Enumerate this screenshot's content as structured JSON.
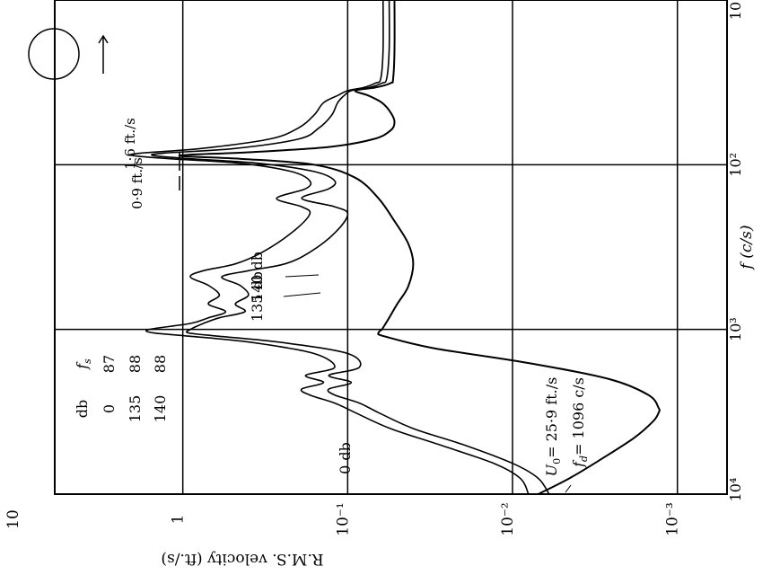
{
  "chart_data": {
    "type": "line",
    "orientation": "rotated-90-ccw",
    "x_scale": "log",
    "y_scale": "log",
    "xlabel": "f (c/s)",
    "ylabel": "R.M.S. velocity (ft./s)",
    "xlim": [
      10,
      10000
    ],
    "ylim": [
      0.0005,
      10
    ],
    "x_ticks": [
      {
        "value": 10,
        "label": "10"
      },
      {
        "value": 100,
        "label": "10²"
      },
      {
        "value": 1000,
        "label": "10³"
      },
      {
        "value": 10000,
        "label": "10⁴"
      }
    ],
    "y_ticks": [
      {
        "value": 10,
        "label": "10"
      },
      {
        "value": 1,
        "label": "1"
      },
      {
        "value": 0.1,
        "label": "10⁻¹"
      },
      {
        "value": 0.01,
        "label": "10⁻²"
      },
      {
        "value": 0.001,
        "label": "10⁻³"
      }
    ],
    "grid": true,
    "table": {
      "headers": [
        "db",
        "f_s"
      ],
      "header_f": "f",
      "header_s": "s",
      "rows": [
        [
          "0",
          "87"
        ],
        [
          "135",
          "88"
        ],
        [
          "140",
          "88"
        ]
      ]
    },
    "annotations": {
      "u0_label": "U",
      "u0_sub": "0",
      "u0_value": "= 25·9 ft./s",
      "fd_label": "f",
      "fd_sub": "d",
      "fd_value": "= 1096 c/s",
      "peak_16": "1·6 ft./s",
      "peak_09": "0·9 ft./s"
    },
    "series": [
      {
        "name": "0 db",
        "x": [
          10,
          20,
          30,
          32,
          34,
          35.5,
          38,
          42,
          48,
          55,
          62,
          70,
          78,
          84,
          88,
          92,
          100,
          120,
          160,
          220,
          300,
          400,
          550,
          700,
          850,
          950,
          1000,
          1050,
          1100,
          1300,
          1600,
          2000,
          2500,
          3000,
          3200,
          3600,
          4500,
          6000,
          8000,
          10000
        ],
        "y": [
          0.052,
          0.052,
          0.053,
          0.055,
          0.068,
          0.09,
          0.075,
          0.062,
          0.055,
          0.052,
          0.055,
          0.07,
          0.13,
          0.4,
          1.05,
          0.45,
          0.16,
          0.09,
          0.065,
          0.052,
          0.043,
          0.04,
          0.043,
          0.05,
          0.056,
          0.06,
          0.062,
          0.065,
          0.06,
          0.03,
          0.008,
          0.0026,
          0.0015,
          0.0013,
          0.0013,
          0.0014,
          0.0018,
          0.0028,
          0.0045,
          0.007
        ]
      },
      {
        "name": "135 db",
        "x": [
          10,
          20,
          30,
          32,
          34,
          35.5,
          38,
          42,
          50,
          60,
          70,
          80,
          85,
          88,
          92,
          98,
          110,
          125,
          140,
          160,
          180,
          200,
          260,
          340,
          400,
          440,
          480,
          540,
          620,
          700,
          780,
          850,
          920,
          1000,
          1050,
          1100,
          1200,
          1400,
          1700,
          1900,
          2100,
          2300,
          2500,
          2800,
          3200,
          4000,
          5000,
          6500,
          8000,
          10000
        ],
        "y": [
          0.056,
          0.056,
          0.058,
          0.062,
          0.074,
          0.095,
          0.105,
          0.115,
          0.125,
          0.15,
          0.2,
          0.5,
          1.3,
          1.5,
          0.9,
          0.35,
          0.16,
          0.12,
          0.13,
          0.19,
          0.12,
          0.1,
          0.12,
          0.17,
          0.24,
          0.4,
          0.58,
          0.45,
          0.4,
          0.48,
          0.42,
          0.6,
          0.75,
          0.9,
          0.92,
          0.6,
          0.25,
          0.1,
          0.085,
          0.13,
          0.095,
          0.13,
          0.12,
          0.085,
          0.065,
          0.04,
          0.02,
          0.01,
          0.007,
          0.006
        ]
      },
      {
        "name": "140 db",
        "x": [
          10,
          20,
          30,
          32,
          34,
          35.5,
          38,
          42,
          50,
          60,
          70,
          80,
          85,
          88,
          92,
          98,
          110,
          125,
          140,
          160,
          180,
          200,
          260,
          340,
          400,
          440,
          480,
          540,
          620,
          700,
          780,
          850,
          920,
          1000,
          1050,
          1100,
          1200,
          1400,
          1700,
          1900,
          2100,
          2300,
          2500,
          2800,
          3200,
          4000,
          5000,
          6500,
          8000,
          10000
        ],
        "y": [
          0.061,
          0.061,
          0.063,
          0.068,
          0.08,
          0.1,
          0.115,
          0.14,
          0.16,
          0.2,
          0.3,
          0.8,
          1.8,
          2.0,
          1.2,
          0.45,
          0.22,
          0.17,
          0.18,
          0.27,
          0.19,
          0.17,
          0.22,
          0.33,
          0.48,
          0.75,
          0.9,
          0.7,
          0.6,
          0.7,
          0.55,
          0.7,
          0.9,
          1.6,
          1.5,
          0.9,
          0.38,
          0.16,
          0.12,
          0.18,
          0.14,
          0.19,
          0.17,
          0.12,
          0.09,
          0.055,
          0.028,
          0.013,
          0.009,
          0.008
        ]
      }
    ]
  }
}
